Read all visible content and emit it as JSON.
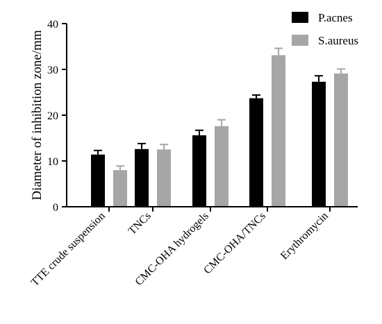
{
  "chart_data": {
    "type": "bar",
    "title": "",
    "xlabel": "",
    "ylabel": "Diameter of inhibition zone/mm",
    "ylim": [
      0,
      40
    ],
    "yticks": [
      0,
      10,
      20,
      30,
      40
    ],
    "grid": false,
    "legend_position": "top-right",
    "categories": [
      "TTE crude suspension",
      "TNCs",
      "CMC-OHA hydrogels",
      "CMC-OHA/TNCs",
      "Erythromycin"
    ],
    "series": [
      {
        "name": "P.acnes",
        "color": "#000000",
        "values": [
          11.4,
          12.6,
          15.6,
          23.7,
          27.3
        ],
        "errors": [
          0.9,
          1.2,
          1.1,
          0.7,
          1.3
        ]
      },
      {
        "name": "S.aureus",
        "color": "#a6a6a6",
        "values": [
          8.0,
          12.5,
          17.6,
          33.1,
          29.1
        ],
        "errors": [
          0.9,
          1.1,
          1.4,
          1.5,
          1.0
        ]
      }
    ]
  }
}
